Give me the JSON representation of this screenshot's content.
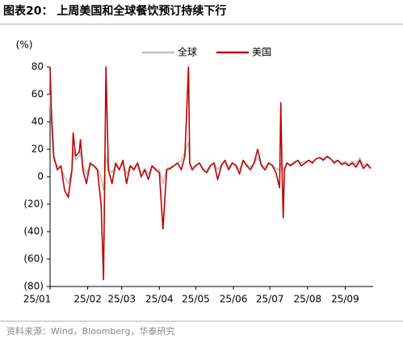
{
  "chart_data": {
    "type": "line",
    "title": "图表20：  上周美国和全球餐饮预订持续下行",
    "ylabel": "(%)",
    "source": "资料来源：Wind，Bloomberg，华泰研究",
    "legend": "top",
    "xlim": [
      0,
      266
    ],
    "xticks": [
      {
        "value": 0,
        "label": "25/01"
      },
      {
        "value": 31,
        "label": "25/02"
      },
      {
        "value": 59,
        "label": "25/03"
      },
      {
        "value": 90,
        "label": "25/04"
      },
      {
        "value": 120,
        "label": "25/05"
      },
      {
        "value": 151,
        "label": "25/06"
      },
      {
        "value": 181,
        "label": "25/07"
      },
      {
        "value": 212,
        "label": "25/08"
      },
      {
        "value": 243,
        "label": "25/09"
      }
    ],
    "ylim": [
      -80,
      80
    ],
    "yticks": [
      {
        "value": -80,
        "label": "(80)"
      },
      {
        "value": -60,
        "label": "(60)"
      },
      {
        "value": -40,
        "label": "(40)"
      },
      {
        "value": -20,
        "label": "(20)"
      },
      0,
      20,
      40,
      60,
      80
    ],
    "x": [
      0,
      1,
      3,
      6,
      9,
      12,
      15,
      18,
      19,
      21,
      24,
      25,
      27,
      30,
      33,
      36,
      39,
      42,
      44,
      46,
      48,
      51,
      54,
      57,
      60,
      63,
      66,
      69,
      72,
      75,
      78,
      81,
      84,
      87,
      90,
      93,
      96,
      99,
      102,
      105,
      108,
      111,
      114,
      115,
      117,
      120,
      123,
      126,
      129,
      132,
      135,
      138,
      141,
      144,
      147,
      150,
      153,
      156,
      159,
      162,
      165,
      168,
      171,
      174,
      177,
      180,
      183,
      186,
      189,
      190,
      191,
      192,
      193,
      195,
      198,
      201,
      204,
      207,
      210,
      213,
      216,
      219,
      222,
      225,
      228,
      231,
      234,
      237,
      240,
      243,
      246,
      249,
      252,
      255,
      258,
      261,
      264
    ],
    "series": [
      {
        "name": "全球",
        "color": "#bfbfbf",
        "values": [
          60,
          40,
          12,
          8,
          6,
          0,
          -5,
          5,
          20,
          12,
          15,
          18,
          8,
          2,
          8,
          8,
          6,
          0,
          -10,
          15,
          6,
          3,
          8,
          6,
          10,
          2,
          8,
          6,
          10,
          3,
          6,
          2,
          8,
          6,
          5,
          -5,
          6,
          7,
          8,
          10,
          12,
          18,
          25,
          10,
          7,
          8,
          10,
          6,
          5,
          8,
          10,
          5,
          9,
          12,
          7,
          10,
          9,
          5,
          12,
          9,
          7,
          10,
          14,
          9,
          7,
          10,
          9,
          6,
          5,
          10,
          8,
          5,
          6,
          10,
          9,
          11,
          12,
          10,
          11,
          12,
          11,
          13,
          14,
          13,
          14,
          13,
          11,
          12,
          10,
          11,
          9,
          11,
          9,
          14,
          8,
          10,
          7
        ]
      },
      {
        "name": "美国",
        "color": "#c00000",
        "values": [
          80,
          50,
          15,
          5,
          8,
          -10,
          -15,
          5,
          32,
          15,
          18,
          27,
          5,
          -5,
          10,
          8,
          5,
          -20,
          -75,
          80,
          5,
          -5,
          10,
          5,
          12,
          -5,
          8,
          5,
          10,
          0,
          5,
          -2,
          8,
          5,
          3,
          -38,
          5,
          6,
          8,
          10,
          5,
          15,
          80,
          10,
          5,
          8,
          10,
          5,
          3,
          8,
          10,
          -2,
          8,
          12,
          5,
          10,
          8,
          2,
          12,
          8,
          5,
          10,
          20,
          8,
          5,
          10,
          8,
          3,
          -8,
          54,
          5,
          -30,
          5,
          10,
          8,
          10,
          12,
          8,
          10,
          12,
          10,
          13,
          14,
          12,
          15,
          13,
          10,
          12,
          9,
          10,
          8,
          10,
          7,
          12,
          6,
          9,
          6
        ]
      }
    ]
  }
}
